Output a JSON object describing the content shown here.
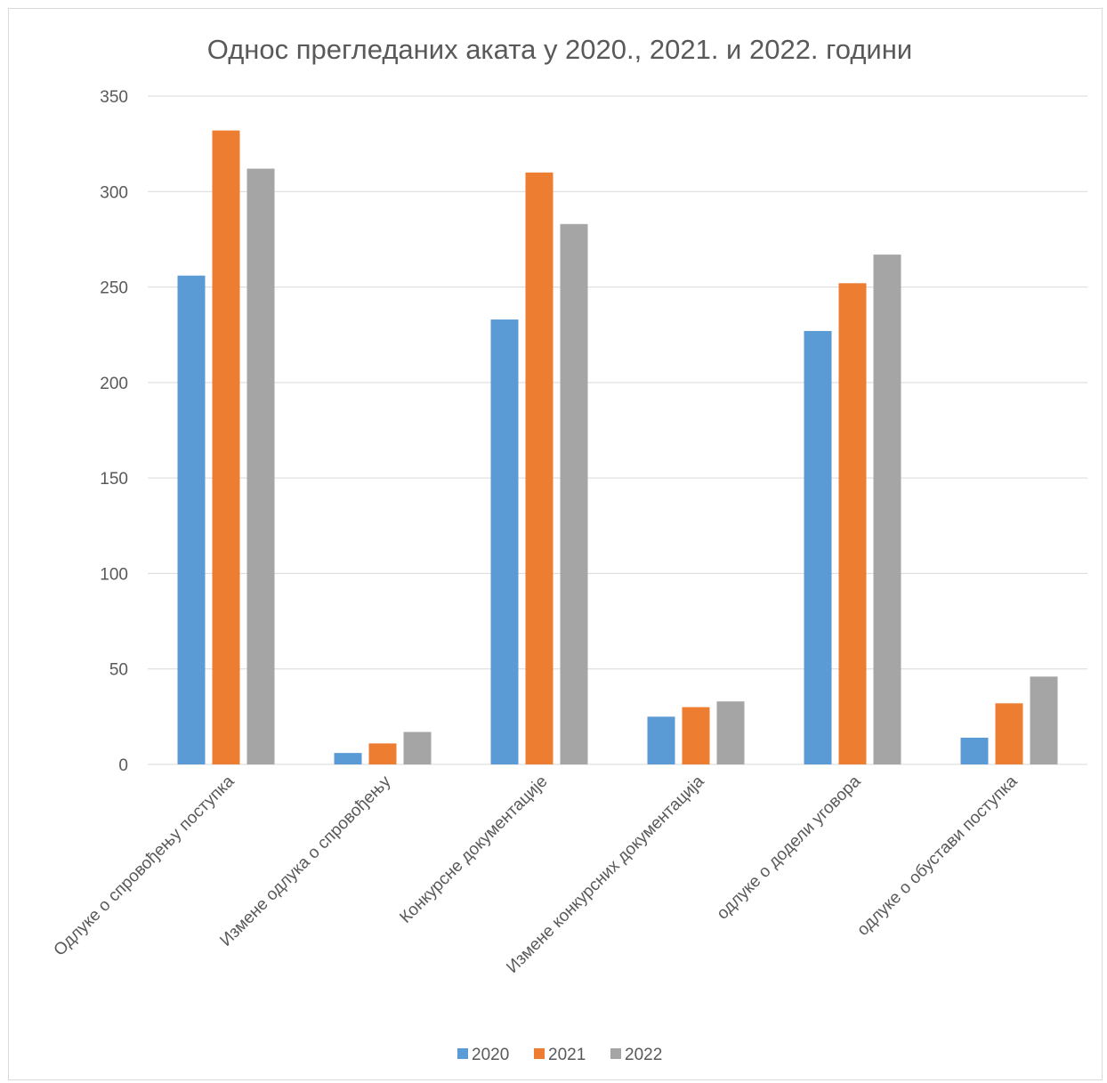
{
  "chart_data": {
    "type": "bar",
    "title": "Однос прегледаних аката у 2020., 2021. и 2022. години",
    "categories": [
      "Одлуке о спровођењу поступка",
      "Измене одлука о спровођењу",
      "Конкурсне документације",
      "Измене конкурсних документација",
      "одлуке о додели уговора",
      "одлуке о обустави поступка"
    ],
    "series": [
      {
        "name": "2020",
        "color": "#5b9bd5",
        "values": [
          256,
          6,
          233,
          25,
          227,
          14
        ]
      },
      {
        "name": "2021",
        "color": "#ed7d31",
        "values": [
          332,
          11,
          310,
          30,
          252,
          32
        ]
      },
      {
        "name": "2022",
        "color": "#a5a5a5",
        "values": [
          312,
          17,
          283,
          33,
          267,
          46
        ]
      }
    ],
    "ylim": [
      0,
      350
    ],
    "yticks": [
      0,
      50,
      100,
      150,
      200,
      250,
      300,
      350
    ],
    "grid": true,
    "legend": "bottom"
  }
}
